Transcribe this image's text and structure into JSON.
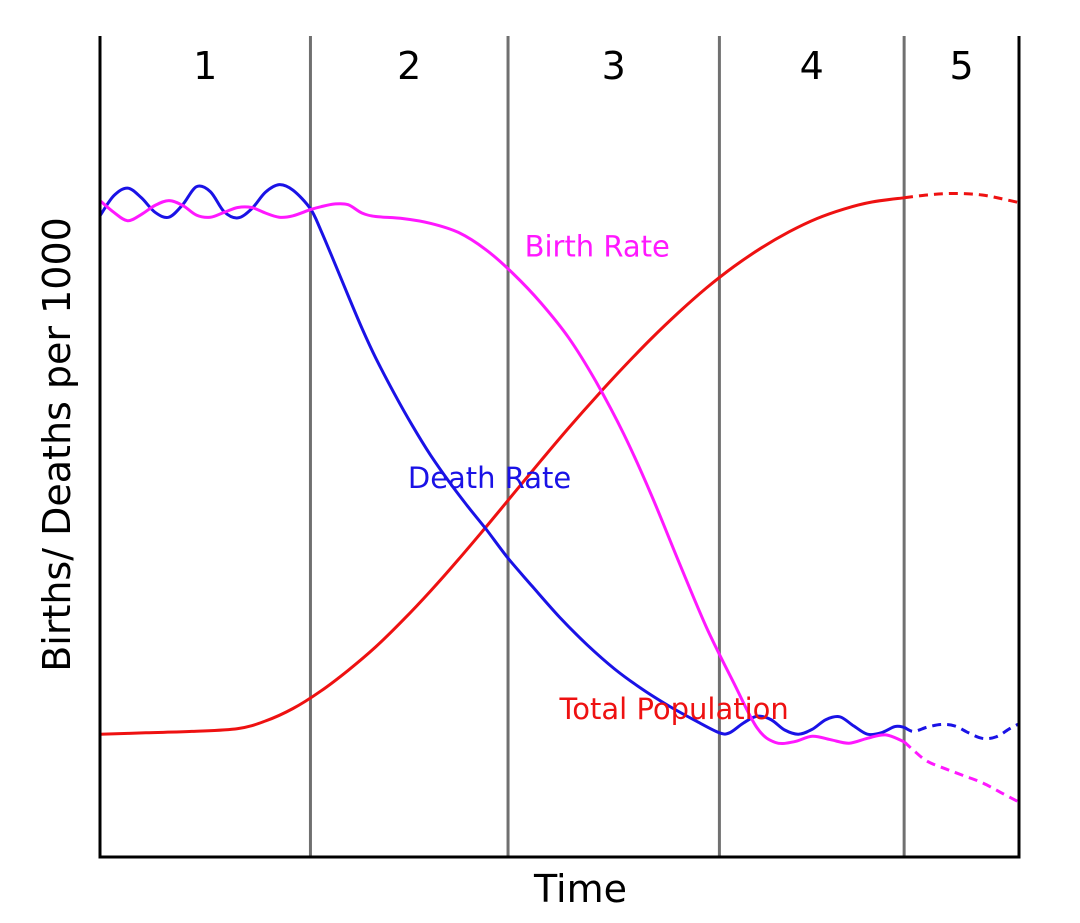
{
  "chart_data": {
    "type": "line",
    "xlabel": "Time",
    "ylabel": "Births/ Deaths per 1000",
    "x_range": [
      0,
      100
    ],
    "y_range": [
      0,
      100
    ],
    "stage_boundaries": [
      0,
      22.9,
      44.4,
      67.4,
      87.5,
      100
    ],
    "stages": [
      "1",
      "2",
      "3",
      "4",
      "5"
    ],
    "grid": false,
    "legend": "inline labels",
    "colors": {
      "birth_rate": "#ff18ff",
      "death_rate": "#1a12e6",
      "total_population": "#ee1111",
      "stage_divider": "#707070",
      "axis": "#000000"
    },
    "series": [
      {
        "name": "Birth Rate",
        "key": "birth_rate",
        "label_at": [
          46.2,
          77.1
        ],
        "points": [
          [
            0,
            85.2
          ],
          [
            1.5,
            83.5
          ],
          [
            3,
            82.3
          ],
          [
            4.5,
            83.2
          ],
          [
            6,
            84.5
          ],
          [
            7.5,
            85.2
          ],
          [
            9,
            84.5
          ],
          [
            10.5,
            83.1
          ],
          [
            12,
            82.8
          ],
          [
            13.5,
            83.5
          ],
          [
            15,
            84.2
          ],
          [
            16.5,
            84.2
          ],
          [
            18,
            83.4
          ],
          [
            19.5,
            82.8
          ],
          [
            21,
            83.0
          ],
          [
            22.9,
            83.9
          ],
          [
            24,
            84.3
          ],
          [
            25.5,
            84.7
          ],
          [
            27,
            84.6
          ],
          [
            28.5,
            83.4
          ],
          [
            30,
            82.9
          ],
          [
            33,
            82.6
          ],
          [
            36,
            81.9
          ],
          [
            39,
            80.6
          ],
          [
            42,
            78.1
          ],
          [
            45,
            74.6
          ],
          [
            48,
            70.4
          ],
          [
            51,
            65.4
          ],
          [
            54,
            59.0
          ],
          [
            57,
            51.5
          ],
          [
            60,
            42.7
          ],
          [
            63,
            33.0
          ],
          [
            66,
            23.6
          ],
          [
            69,
            15.5
          ],
          [
            71.5,
            9.1
          ],
          [
            73.5,
            7.0
          ],
          [
            75.5,
            7.1
          ],
          [
            77.5,
            7.9
          ],
          [
            79.5,
            7.4
          ],
          [
            81.5,
            6.9
          ],
          [
            83.5,
            7.6
          ],
          [
            85.5,
            8.1
          ],
          [
            87.5,
            7.1
          ]
        ]
      },
      {
        "name": "Birth Rate (projected)",
        "key": "birth_rate",
        "projected": true,
        "points": [
          [
            87.5,
            7.1
          ],
          [
            88.5,
            5.9
          ],
          [
            90,
            4.3
          ],
          [
            92,
            3.2
          ],
          [
            94,
            2.2
          ],
          [
            96,
            1.2
          ],
          [
            98,
            -0.2
          ],
          [
            100,
            -1.6
          ]
        ]
      },
      {
        "name": "Death Rate",
        "key": "death_rate",
        "label_at": [
          33.5,
          43.7
        ],
        "points": [
          [
            0,
            83.0
          ],
          [
            1.5,
            85.9
          ],
          [
            3,
            87.0
          ],
          [
            4.5,
            85.6
          ],
          [
            6,
            83.5
          ],
          [
            7.5,
            82.8
          ],
          [
            9,
            84.6
          ],
          [
            10.5,
            87.2
          ],
          [
            12,
            86.5
          ],
          [
            13.5,
            83.6
          ],
          [
            15,
            82.7
          ],
          [
            16.5,
            84.0
          ],
          [
            18,
            86.4
          ],
          [
            19.5,
            87.5
          ],
          [
            21,
            86.7
          ],
          [
            22.9,
            84.0
          ],
          [
            24,
            81.0
          ],
          [
            25.5,
            76.3
          ],
          [
            27,
            71.5
          ],
          [
            28.5,
            66.8
          ],
          [
            30,
            62.5
          ],
          [
            32,
            57.4
          ],
          [
            34,
            52.7
          ],
          [
            36,
            48.4
          ],
          [
            38,
            44.6
          ],
          [
            40,
            41.1
          ],
          [
            42,
            37.8
          ],
          [
            44.4,
            33.6
          ],
          [
            47,
            29.6
          ],
          [
            50,
            25.1
          ],
          [
            53,
            21.1
          ],
          [
            56,
            17.6
          ],
          [
            59,
            14.7
          ],
          [
            62,
            12.2
          ],
          [
            65,
            10.0
          ],
          [
            67.4,
            8.4
          ],
          [
            68.5,
            8.4
          ],
          [
            70,
            9.8
          ],
          [
            71.5,
            10.8
          ],
          [
            73,
            10.3
          ],
          [
            74.5,
            8.8
          ],
          [
            76,
            8.2
          ],
          [
            77.5,
            8.9
          ],
          [
            79,
            10.3
          ],
          [
            80.5,
            10.7
          ],
          [
            82,
            9.4
          ],
          [
            83.5,
            8.2
          ],
          [
            85,
            8.4
          ],
          [
            86.5,
            9.3
          ],
          [
            87.5,
            9.2
          ]
        ]
      },
      {
        "name": "Death Rate (projected)",
        "key": "death_rate",
        "projected": true,
        "points": [
          [
            87.5,
            9.2
          ],
          [
            88.5,
            8.6
          ],
          [
            90,
            9.2
          ],
          [
            91.5,
            9.6
          ],
          [
            93,
            9.4
          ],
          [
            94.5,
            8.4
          ],
          [
            96,
            7.6
          ],
          [
            97.5,
            7.8
          ],
          [
            99,
            9.0
          ],
          [
            100,
            9.7
          ]
        ]
      },
      {
        "name": "Total Population",
        "key": "total_population",
        "label_at": [
          50.0,
          10.4
        ],
        "points": [
          [
            0,
            8.2
          ],
          [
            5,
            8.4
          ],
          [
            10,
            8.6
          ],
          [
            15,
            9.0
          ],
          [
            18,
            10.1
          ],
          [
            21,
            11.9
          ],
          [
            24,
            14.4
          ],
          [
            27,
            17.4
          ],
          [
            30,
            20.8
          ],
          [
            33,
            24.7
          ],
          [
            36,
            28.9
          ],
          [
            39,
            33.4
          ],
          [
            42,
            38.1
          ],
          [
            45,
            42.9
          ],
          [
            48,
            47.7
          ],
          [
            51,
            52.4
          ],
          [
            54,
            56.9
          ],
          [
            57,
            61.2
          ],
          [
            60,
            65.3
          ],
          [
            63,
            69.1
          ],
          [
            66,
            72.6
          ],
          [
            69,
            75.7
          ],
          [
            72,
            78.4
          ],
          [
            75,
            80.7
          ],
          [
            78,
            82.6
          ],
          [
            81,
            84.0
          ],
          [
            84,
            85.0
          ],
          [
            87.5,
            85.6
          ]
        ]
      },
      {
        "name": "Total Population (projected)",
        "key": "total_population",
        "projected": true,
        "points": [
          [
            87.5,
            85.6
          ],
          [
            90,
            86.0
          ],
          [
            92,
            86.2
          ],
          [
            94,
            86.2
          ],
          [
            96,
            86.0
          ],
          [
            98,
            85.5
          ],
          [
            100,
            84.9
          ]
        ]
      }
    ]
  }
}
